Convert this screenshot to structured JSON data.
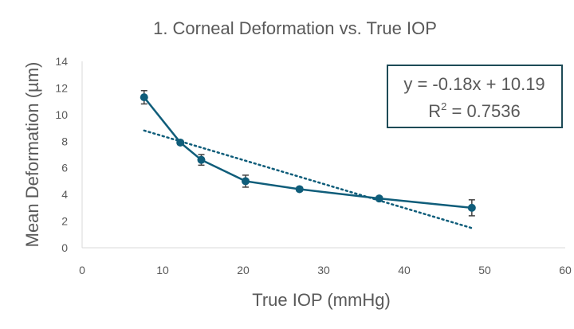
{
  "chart_data": {
    "type": "line",
    "title": "1. Corneal Deformation vs. True IOP",
    "xlabel": "True IOP (mmHg)",
    "ylabel": "Mean Deformation  (µm)",
    "xlim": [
      0,
      60
    ],
    "ylim": [
      0,
      14
    ],
    "xticks": [
      "0",
      "10",
      "20",
      "30",
      "40",
      "50",
      "60"
    ],
    "yticks": [
      "0",
      "2",
      "4",
      "6",
      "8",
      "10",
      "12",
      "14"
    ],
    "grid": false,
    "series": [
      {
        "x": [
          7.7,
          12.2,
          14.8,
          20.3,
          27.0,
          36.9,
          48.4
        ],
        "y": [
          11.3,
          7.9,
          6.6,
          5.0,
          4.4,
          3.7,
          3.0
        ],
        "error": [
          0.5,
          0.15,
          0.4,
          0.45,
          0.15,
          0.15,
          0.6
        ],
        "color": "#0f5d7a"
      }
    ],
    "trendline": {
      "type": "linear",
      "slope": -0.18,
      "intercept": 10.19,
      "x_range": [
        7.7,
        48.4
      ],
      "style": "dotted",
      "color": "#0f5d7a",
      "equation": "y = -0.18x + 10.19",
      "r2_label": "R",
      "r2_sup": "2",
      "r2_value": " = 0.7536"
    }
  }
}
